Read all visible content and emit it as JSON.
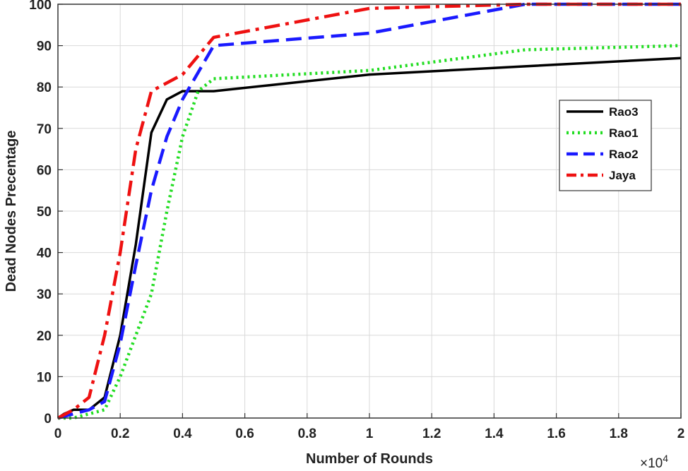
{
  "chart_data": {
    "type": "line",
    "title": "",
    "xlabel": "Number of Rounds",
    "ylabel": "Dead Nodes Precentage",
    "x_exponent_label": "×10",
    "x_exponent_power": "4",
    "xlim": [
      0,
      2
    ],
    "ylim": [
      0,
      100
    ],
    "x_ticks": [
      0,
      0.2,
      0.4,
      0.6,
      0.8,
      1,
      1.2,
      1.4,
      1.6,
      1.8,
      2
    ],
    "x_tick_labels": [
      "0",
      "0.2",
      "0.4",
      "0.6",
      "0.8",
      "1",
      "1.2",
      "1.4",
      "1.6",
      "1.8",
      "2"
    ],
    "y_ticks": [
      0,
      10,
      20,
      30,
      40,
      50,
      60,
      70,
      80,
      90,
      100
    ],
    "y_tick_labels": [
      "0",
      "10",
      "20",
      "30",
      "40",
      "50",
      "60",
      "70",
      "80",
      "90",
      "100"
    ],
    "grid": true,
    "legend_position": "right",
    "series": [
      {
        "name": "Rao3",
        "color": "#000000",
        "style": "solid",
        "x": [
          0,
          0.02,
          0.05,
          0.1,
          0.15,
          0.2,
          0.25,
          0.3,
          0.35,
          0.4,
          0.5,
          1.0,
          1.5,
          2.0
        ],
        "y": [
          0,
          1,
          2,
          2,
          5,
          20,
          42,
          69,
          77,
          79,
          79,
          83,
          85,
          87
        ]
      },
      {
        "name": "Rao1",
        "color": "#22dd22",
        "style": "dotted",
        "x": [
          0,
          0.05,
          0.1,
          0.15,
          0.2,
          0.25,
          0.3,
          0.35,
          0.4,
          0.45,
          0.5,
          1.0,
          1.5,
          2.0
        ],
        "y": [
          0,
          0,
          1,
          2,
          10,
          20,
          30,
          50,
          68,
          79,
          82,
          84,
          89,
          90
        ]
      },
      {
        "name": "Rao2",
        "color": "#1a1aff",
        "style": "dashed",
        "x": [
          0,
          0.05,
          0.1,
          0.15,
          0.2,
          0.25,
          0.3,
          0.35,
          0.4,
          0.5,
          1.0,
          1.5,
          2.0
        ],
        "y": [
          0,
          1,
          2,
          4,
          18,
          37,
          55,
          68,
          77,
          90,
          93,
          100,
          100
        ]
      },
      {
        "name": "Jaya",
        "color": "#ee1111",
        "style": "dashdot",
        "x": [
          0,
          0.05,
          0.1,
          0.15,
          0.2,
          0.25,
          0.3,
          0.4,
          0.5,
          1.0,
          1.5,
          2.0
        ],
        "y": [
          0,
          2,
          5,
          20,
          40,
          65,
          79,
          83,
          92,
          99,
          100,
          100
        ]
      }
    ]
  }
}
